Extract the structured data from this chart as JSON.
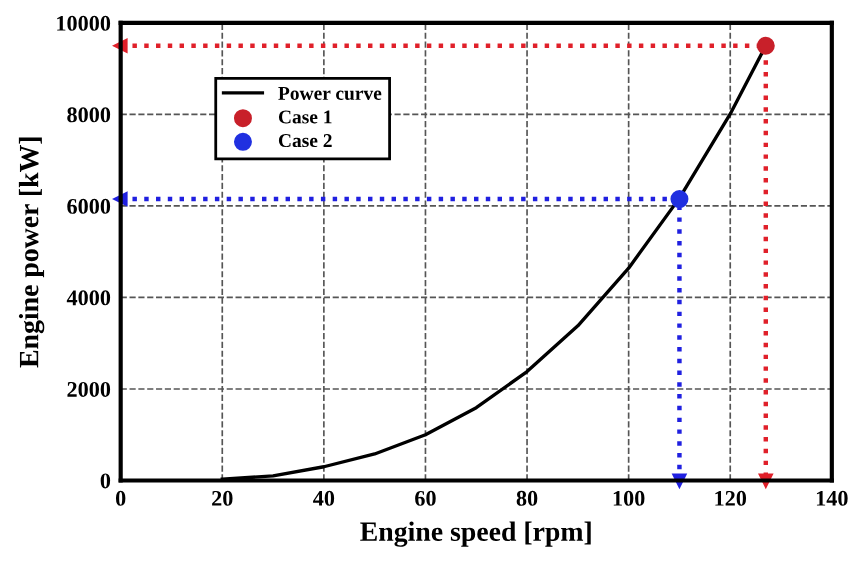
{
  "chart_data": {
    "type": "line",
    "xlabel": "Engine speed [rpm]",
    "ylabel": "Engine power [kW]",
    "xlim": [
      0,
      140
    ],
    "xticks": [
      0,
      20,
      40,
      60,
      80,
      100,
      120,
      140
    ],
    "ylim": [
      0,
      10000
    ],
    "yticks": [
      0,
      2000,
      4000,
      6000,
      8000,
      10000
    ],
    "grid": true,
    "legend": "top left",
    "series": [
      {
        "x": [
          0,
          127,
          127
        ],
        "values": [
          9500,
          9500,
          0
        ],
        "color": "#e0202a",
        "line_style": "dotted",
        "marker": "triangle"
      },
      {
        "x": [
          0,
          110,
          110
        ],
        "values": [
          6150,
          6150,
          0
        ],
        "color": "#2020e0",
        "line_style": "dotted",
        "marker": "triangle"
      },
      {
        "name": "Power curve",
        "x": [
          20,
          30,
          40,
          50,
          60,
          70,
          80,
          90,
          100,
          110,
          120,
          127
        ],
        "values": [
          30,
          100,
          300,
          580,
          1000,
          1590,
          2380,
          3380,
          4640,
          6170,
          8010,
          9500
        ],
        "color": "#000000",
        "line_style": "solid",
        "marker": "none"
      },
      {
        "name": "Case 1",
        "type": "scatter",
        "x": [
          127
        ],
        "values": [
          9500
        ],
        "color": "#c8202a",
        "marker": "circle"
      },
      {
        "name": "Case 2",
        "type": "scatter",
        "x": [
          110
        ],
        "values": [
          6150
        ],
        "color": "#2030e0",
        "marker": "circle"
      }
    ]
  }
}
